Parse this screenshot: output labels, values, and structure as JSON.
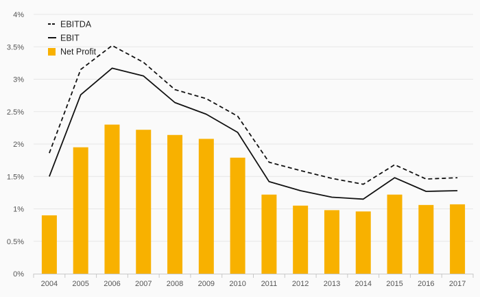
{
  "chart_data": {
    "type": "bar",
    "categories": [
      "2004",
      "2005",
      "2006",
      "2007",
      "2008",
      "2009",
      "2010",
      "2011",
      "2012",
      "2013",
      "2014",
      "2015",
      "2016",
      "2017"
    ],
    "series": [
      {
        "name": "Net Profit",
        "type": "bar",
        "color": "#f8b100",
        "values": [
          0.9,
          1.95,
          2.3,
          2.22,
          2.14,
          2.08,
          1.79,
          1.22,
          1.05,
          0.98,
          0.96,
          1.22,
          1.06,
          1.07
        ]
      },
      {
        "name": "EBIT",
        "type": "line",
        "style": "solid",
        "color": "#111111",
        "values": [
          1.5,
          2.76,
          3.17,
          3.05,
          2.64,
          2.46,
          2.18,
          1.42,
          1.28,
          1.18,
          1.15,
          1.48,
          1.27,
          1.28
        ]
      },
      {
        "name": "EBITDA",
        "type": "line",
        "style": "dashed",
        "color": "#111111",
        "values": [
          1.86,
          3.15,
          3.52,
          3.26,
          2.84,
          2.7,
          2.43,
          1.72,
          1.59,
          1.47,
          1.38,
          1.68,
          1.46,
          1.48
        ]
      }
    ],
    "y_ticks": [
      "0%",
      "0.5%",
      "1%",
      "1.5%",
      "2%",
      "2.5%",
      "3%",
      "3.5%",
      "4%"
    ],
    "ylim": [
      0,
      4
    ],
    "y_unit": "%",
    "legend": [
      "EBITDA",
      "EBIT",
      "Net Profit"
    ],
    "legend_position": "top-left",
    "grid": "horizontal",
    "title": "",
    "xlabel": "",
    "ylabel": ""
  }
}
